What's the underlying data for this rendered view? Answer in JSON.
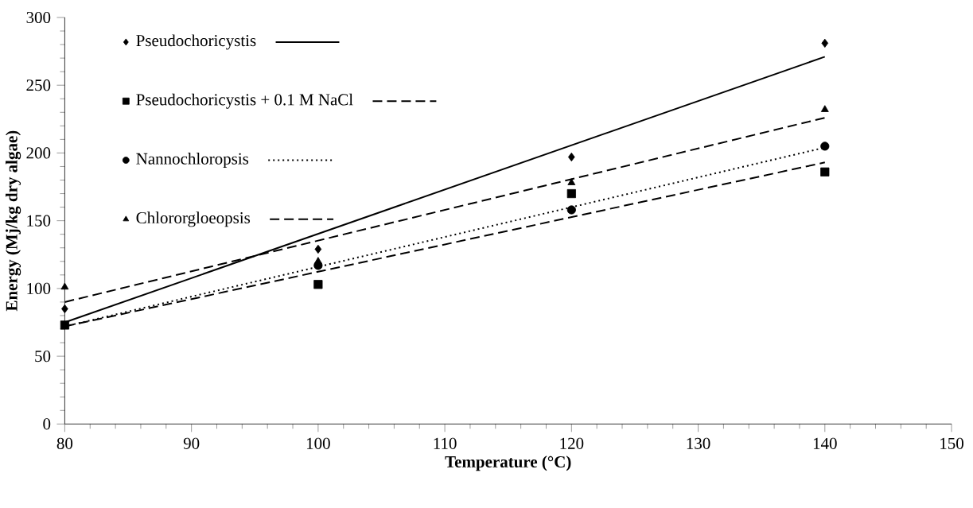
{
  "chart_data": {
    "type": "scatter",
    "xlabel": "Temperature (°C)",
    "ylabel": "Energy  (Mj/kg dry algae)",
    "xlim": [
      80,
      150
    ],
    "xticks": [
      80,
      90,
      100,
      110,
      120,
      130,
      140,
      150
    ],
    "ylim": [
      0,
      300
    ],
    "yticks": [
      0,
      50,
      100,
      150,
      200,
      250,
      300
    ],
    "grid": false,
    "legend": "top left",
    "series": [
      {
        "name": "Pseudochoricystis",
        "color": "#000000",
        "marker": "diamond",
        "x": [
          80,
          100,
          120,
          140
        ],
        "values": [
          85,
          129,
          197,
          281
        ]
      },
      {
        "name": "Pseudochoricystis + 0.1 M NaCl",
        "color": "#000000",
        "marker": "square",
        "x": [
          80,
          100,
          120,
          140
        ],
        "values": [
          73,
          103,
          170,
          186
        ]
      },
      {
        "name": "Nannochloropsis",
        "color": "#000000",
        "marker": "circle",
        "x": [
          100,
          120,
          140
        ],
        "values": [
          117,
          158,
          205
        ]
      },
      {
        "name": "Chlororgloeopsis",
        "color": "#000000",
        "marker": "triangle",
        "x": [
          80,
          100,
          120,
          140
        ],
        "values": [
          101,
          120,
          178,
          232
        ]
      },
      {
        "type": "line",
        "color": "#000000",
        "line_style": "solid",
        "x": [
          80,
          140
        ],
        "values": [
          75,
          271
        ]
      },
      {
        "type": "line",
        "color": "#000000",
        "line_style": "dashed",
        "x": [
          80,
          140
        ],
        "values": [
          72,
          193
        ]
      },
      {
        "type": "line",
        "color": "#000000",
        "line_style": "dotted",
        "x": [
          80,
          140
        ],
        "values": [
          72,
          204
        ]
      },
      {
        "type": "line",
        "color": "#000000",
        "line_style": "dashed",
        "x": [
          80,
          140
        ],
        "values": [
          90,
          226
        ]
      }
    ]
  }
}
